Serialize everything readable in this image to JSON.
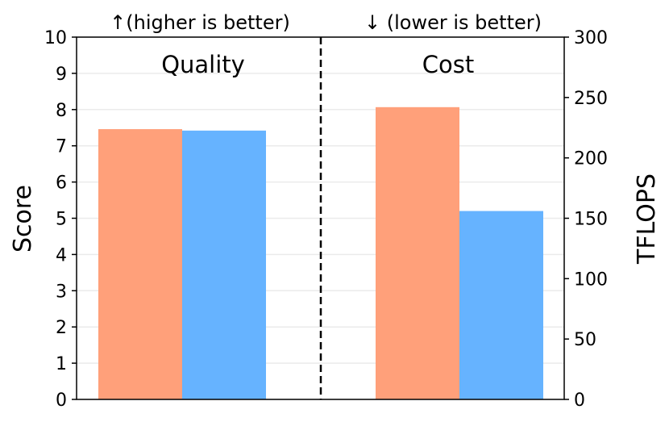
{
  "chart_data": {
    "type": "bar",
    "annotations": {
      "left": "↑(higher is better)",
      "right": "↓ (lower is better)"
    },
    "groups": [
      {
        "label": "Quality",
        "axis": "left",
        "values": [
          7.46,
          7.42
        ]
      },
      {
        "label": "Cost",
        "axis": "right",
        "values": [
          242,
          156
        ]
      }
    ],
    "series_colors": [
      "#FFA07A",
      "#66B3FF"
    ],
    "left_axis": {
      "label": "Score",
      "ylim": [
        0,
        10
      ],
      "ticks": [
        "0",
        "1",
        "2",
        "3",
        "4",
        "5",
        "6",
        "7",
        "8",
        "9",
        "10"
      ]
    },
    "right_axis": {
      "label": "TFLOPS",
      "ylim": [
        0,
        300
      ],
      "ticks": [
        "0",
        "50",
        "100",
        "150",
        "200",
        "250",
        "300"
      ]
    },
    "grid": true,
    "divider": "dashed"
  }
}
